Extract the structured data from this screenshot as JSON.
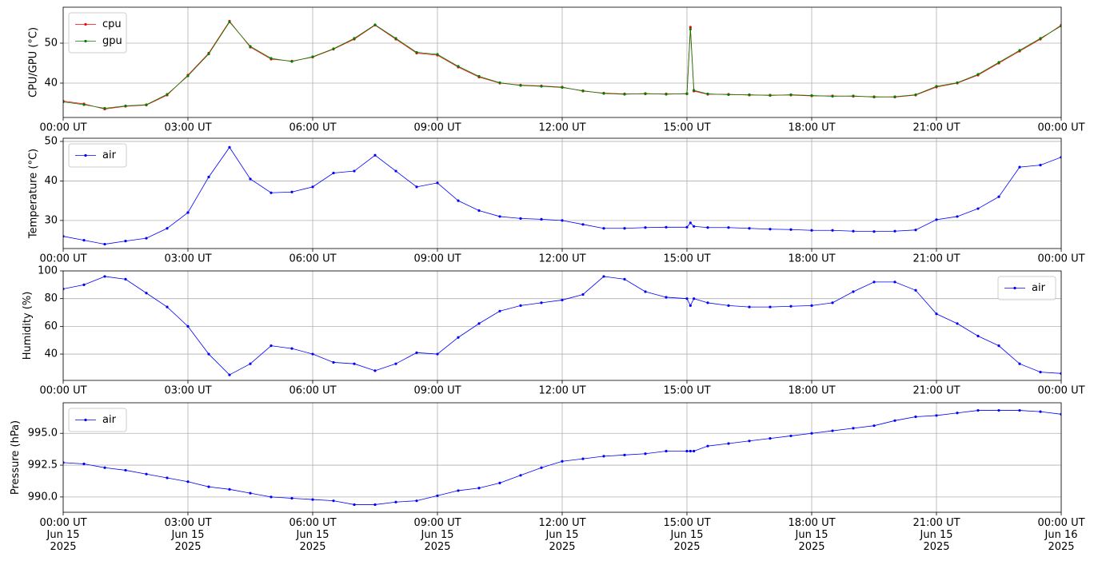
{
  "chart_data": [
    {
      "type": "line",
      "ylabel": "CPU/GPU (°C)",
      "grid": true,
      "legend": "upper left",
      "x": [
        "2025-06-15 00:00",
        "2025-06-15 00:30",
        "2025-06-15 01:00",
        "2025-06-15 01:30",
        "2025-06-15 02:00",
        "2025-06-15 02:30",
        "2025-06-15 03:00",
        "2025-06-15 03:30",
        "2025-06-15 04:00",
        "2025-06-15 04:30",
        "2025-06-15 05:00",
        "2025-06-15 05:30",
        "2025-06-15 06:00",
        "2025-06-15 06:30",
        "2025-06-15 07:00",
        "2025-06-15 07:30",
        "2025-06-15 08:00",
        "2025-06-15 08:30",
        "2025-06-15 09:00",
        "2025-06-15 09:30",
        "2025-06-15 10:00",
        "2025-06-15 10:30",
        "2025-06-15 11:00",
        "2025-06-15 11:30",
        "2025-06-15 12:00",
        "2025-06-15 12:30",
        "2025-06-15 13:00",
        "2025-06-15 13:30",
        "2025-06-15 14:00",
        "2025-06-15 14:30",
        "2025-06-15 15:00",
        "2025-06-15 15:05",
        "2025-06-15 15:10",
        "2025-06-15 15:30",
        "2025-06-15 16:00",
        "2025-06-15 16:30",
        "2025-06-15 17:00",
        "2025-06-15 17:30",
        "2025-06-15 18:00",
        "2025-06-15 18:30",
        "2025-06-15 19:00",
        "2025-06-15 19:30",
        "2025-06-15 20:00",
        "2025-06-15 20:30",
        "2025-06-15 21:00",
        "2025-06-15 21:30",
        "2025-06-15 22:00",
        "2025-06-15 22:30",
        "2025-06-15 23:00",
        "2025-06-15 23:30",
        "2025-06-16 00:00"
      ],
      "series": [
        {
          "name": "cpu",
          "color": "red",
          "values": [
            35.5,
            34.8,
            33.5,
            34.2,
            34.5,
            37,
            42,
            47.5,
            55.5,
            49,
            46,
            45.5,
            46.5,
            48.5,
            51,
            54.5,
            51,
            47.5,
            47,
            44,
            41.5,
            40,
            39.5,
            39.3,
            39,
            38,
            37.5,
            37.3,
            37.3,
            37.3,
            37.3,
            54,
            38,
            37.2,
            37.2,
            37,
            37,
            37,
            36.8,
            36.8,
            36.7,
            36.6,
            36.5,
            37,
            39,
            40,
            42,
            45,
            48,
            51,
            54.5
          ]
        },
        {
          "name": "gpu",
          "color": "green",
          "values": [
            35.3,
            34.6,
            33.7,
            34.3,
            34.6,
            37.2,
            41.8,
            47.3,
            55.3,
            49.2,
            46.2,
            45.4,
            46.6,
            48.6,
            51.2,
            54.6,
            51.2,
            47.7,
            47.2,
            44.2,
            41.7,
            40.1,
            39.4,
            39.2,
            38.9,
            38.1,
            37.4,
            37.2,
            37.4,
            37.2,
            37.4,
            53.5,
            38.2,
            37.3,
            37.1,
            37.1,
            36.9,
            37.1,
            36.9,
            36.7,
            36.8,
            36.5,
            36.6,
            37.1,
            39.2,
            40.1,
            42.2,
            45.2,
            48.2,
            51.2,
            54.3
          ]
        }
      ],
      "xlim": [
        "2025-06-15 00:00",
        "2025-06-16 00:00"
      ],
      "xticks": [
        {
          "value": "2025-06-15 00:00",
          "label": "00:00 UT"
        },
        {
          "value": "2025-06-15 03:00",
          "label": "03:00 UT"
        },
        {
          "value": "2025-06-15 06:00",
          "label": "06:00 UT"
        },
        {
          "value": "2025-06-15 09:00",
          "label": "09:00 UT"
        },
        {
          "value": "2025-06-15 12:00",
          "label": "12:00 UT"
        },
        {
          "value": "2025-06-15 15:00",
          "label": "15:00 UT"
        },
        {
          "value": "2025-06-15 18:00",
          "label": "18:00 UT"
        },
        {
          "value": "2025-06-15 21:00",
          "label": "21:00 UT"
        },
        {
          "value": "2025-06-16 00:00",
          "label": "00:00 UT"
        }
      ],
      "ylim": [
        31.4,
        59
      ],
      "yticks": [
        40,
        50
      ]
    },
    {
      "type": "line",
      "ylabel": "Temperature (°C)",
      "grid": true,
      "legend": "upper left",
      "x": [
        "2025-06-15 00:00",
        "2025-06-15 00:30",
        "2025-06-15 01:00",
        "2025-06-15 01:30",
        "2025-06-15 02:00",
        "2025-06-15 02:30",
        "2025-06-15 03:00",
        "2025-06-15 03:30",
        "2025-06-15 04:00",
        "2025-06-15 04:30",
        "2025-06-15 05:00",
        "2025-06-15 05:30",
        "2025-06-15 06:00",
        "2025-06-15 06:30",
        "2025-06-15 07:00",
        "2025-06-15 07:30",
        "2025-06-15 08:00",
        "2025-06-15 08:30",
        "2025-06-15 09:00",
        "2025-06-15 09:30",
        "2025-06-15 10:00",
        "2025-06-15 10:30",
        "2025-06-15 11:00",
        "2025-06-15 11:30",
        "2025-06-15 12:00",
        "2025-06-15 12:30",
        "2025-06-15 13:00",
        "2025-06-15 13:30",
        "2025-06-15 14:00",
        "2025-06-15 14:30",
        "2025-06-15 15:00",
        "2025-06-15 15:05",
        "2025-06-15 15:10",
        "2025-06-15 15:30",
        "2025-06-15 16:00",
        "2025-06-15 16:30",
        "2025-06-15 17:00",
        "2025-06-15 17:30",
        "2025-06-15 18:00",
        "2025-06-15 18:30",
        "2025-06-15 19:00",
        "2025-06-15 19:30",
        "2025-06-15 20:00",
        "2025-06-15 20:30",
        "2025-06-15 21:00",
        "2025-06-15 21:30",
        "2025-06-15 22:00",
        "2025-06-15 22:30",
        "2025-06-15 23:00",
        "2025-06-15 23:30",
        "2025-06-16 00:00"
      ],
      "series": [
        {
          "name": "air",
          "color": "blue",
          "values": [
            26,
            25,
            24,
            24.8,
            25.5,
            28,
            32,
            41,
            48.5,
            40.5,
            37,
            37.2,
            38.5,
            42,
            42.5,
            46.5,
            42.5,
            38.5,
            39.5,
            35,
            32.5,
            31,
            30.5,
            30.3,
            30,
            29,
            28,
            28,
            28.2,
            28.3,
            28.3,
            29.4,
            28.5,
            28.2,
            28.2,
            28,
            27.8,
            27.7,
            27.5,
            27.5,
            27.3,
            27.2,
            27.3,
            27.6,
            30.2,
            31,
            33,
            36,
            43.5,
            44,
            46
          ]
        }
      ],
      "xlim": [
        "2025-06-15 00:00",
        "2025-06-16 00:00"
      ],
      "xticks": [
        {
          "value": "2025-06-15 00:00",
          "label": "00:00 UT"
        },
        {
          "value": "2025-06-15 03:00",
          "label": "03:00 UT"
        },
        {
          "value": "2025-06-15 06:00",
          "label": "06:00 UT"
        },
        {
          "value": "2025-06-15 09:00",
          "label": "09:00 UT"
        },
        {
          "value": "2025-06-15 12:00",
          "label": "12:00 UT"
        },
        {
          "value": "2025-06-15 15:00",
          "label": "15:00 UT"
        },
        {
          "value": "2025-06-15 18:00",
          "label": "18:00 UT"
        },
        {
          "value": "2025-06-15 21:00",
          "label": "21:00 UT"
        },
        {
          "value": "2025-06-16 00:00",
          "label": "00:00 UT"
        }
      ],
      "ylim": [
        22.9,
        50.8
      ],
      "yticks": [
        30,
        40,
        50
      ]
    },
    {
      "type": "line",
      "ylabel": "Humidity (%)",
      "grid": true,
      "legend": "upper right",
      "x": [
        "2025-06-15 00:00",
        "2025-06-15 00:30",
        "2025-06-15 01:00",
        "2025-06-15 01:30",
        "2025-06-15 02:00",
        "2025-06-15 02:30",
        "2025-06-15 03:00",
        "2025-06-15 03:30",
        "2025-06-15 04:00",
        "2025-06-15 04:30",
        "2025-06-15 05:00",
        "2025-06-15 05:30",
        "2025-06-15 06:00",
        "2025-06-15 06:30",
        "2025-06-15 07:00",
        "2025-06-15 07:30",
        "2025-06-15 08:00",
        "2025-06-15 08:30",
        "2025-06-15 09:00",
        "2025-06-15 09:30",
        "2025-06-15 10:00",
        "2025-06-15 10:30",
        "2025-06-15 11:00",
        "2025-06-15 11:30",
        "2025-06-15 12:00",
        "2025-06-15 12:30",
        "2025-06-15 13:00",
        "2025-06-15 13:30",
        "2025-06-15 14:00",
        "2025-06-15 14:30",
        "2025-06-15 15:00",
        "2025-06-15 15:05",
        "2025-06-15 15:10",
        "2025-06-15 15:30",
        "2025-06-15 16:00",
        "2025-06-15 16:30",
        "2025-06-15 17:00",
        "2025-06-15 17:30",
        "2025-06-15 18:00",
        "2025-06-15 18:30",
        "2025-06-15 19:00",
        "2025-06-15 19:30",
        "2025-06-15 20:00",
        "2025-06-15 20:30",
        "2025-06-15 21:00",
        "2025-06-15 21:30",
        "2025-06-15 22:00",
        "2025-06-15 22:30",
        "2025-06-15 23:00",
        "2025-06-15 23:30",
        "2025-06-16 00:00"
      ],
      "series": [
        {
          "name": "air",
          "color": "blue",
          "values": [
            87,
            90,
            96,
            94,
            84,
            74,
            60,
            40,
            25,
            33,
            46,
            44,
            40,
            34,
            33,
            28,
            33,
            41,
            40,
            52,
            62,
            71,
            75,
            77,
            79,
            83,
            96,
            94,
            85,
            81,
            80,
            75,
            80,
            77,
            75,
            74,
            74,
            74.5,
            75,
            77,
            85,
            92,
            92,
            86,
            69,
            62,
            53,
            46,
            33,
            27,
            26
          ]
        }
      ],
      "xlim": [
        "2025-06-15 00:00",
        "2025-06-16 00:00"
      ],
      "xticks": [
        {
          "value": "2025-06-15 00:00",
          "label": "00:00 UT"
        },
        {
          "value": "2025-06-15 03:00",
          "label": "03:00 UT"
        },
        {
          "value": "2025-06-15 06:00",
          "label": "06:00 UT"
        },
        {
          "value": "2025-06-15 09:00",
          "label": "09:00 UT"
        },
        {
          "value": "2025-06-15 12:00",
          "label": "12:00 UT"
        },
        {
          "value": "2025-06-15 15:00",
          "label": "15:00 UT"
        },
        {
          "value": "2025-06-15 18:00",
          "label": "18:00 UT"
        },
        {
          "value": "2025-06-15 21:00",
          "label": "21:00 UT"
        },
        {
          "value": "2025-06-16 00:00",
          "label": "00:00 UT"
        }
      ],
      "ylim": [
        21,
        100
      ],
      "yticks": [
        40,
        60,
        80,
        100
      ]
    },
    {
      "type": "line",
      "ylabel": "Pressure (hPa)",
      "grid": true,
      "legend": "upper left",
      "x": [
        "2025-06-15 00:00",
        "2025-06-15 00:30",
        "2025-06-15 01:00",
        "2025-06-15 01:30",
        "2025-06-15 02:00",
        "2025-06-15 02:30",
        "2025-06-15 03:00",
        "2025-06-15 03:30",
        "2025-06-15 04:00",
        "2025-06-15 04:30",
        "2025-06-15 05:00",
        "2025-06-15 05:30",
        "2025-06-15 06:00",
        "2025-06-15 06:30",
        "2025-06-15 07:00",
        "2025-06-15 07:30",
        "2025-06-15 08:00",
        "2025-06-15 08:30",
        "2025-06-15 09:00",
        "2025-06-15 09:30",
        "2025-06-15 10:00",
        "2025-06-15 10:30",
        "2025-06-15 11:00",
        "2025-06-15 11:30",
        "2025-06-15 12:00",
        "2025-06-15 12:30",
        "2025-06-15 13:00",
        "2025-06-15 13:30",
        "2025-06-15 14:00",
        "2025-06-15 14:30",
        "2025-06-15 15:00",
        "2025-06-15 15:05",
        "2025-06-15 15:10",
        "2025-06-15 15:30",
        "2025-06-15 16:00",
        "2025-06-15 16:30",
        "2025-06-15 17:00",
        "2025-06-15 17:30",
        "2025-06-15 18:00",
        "2025-06-15 18:30",
        "2025-06-15 19:00",
        "2025-06-15 19:30",
        "2025-06-15 20:00",
        "2025-06-15 20:30",
        "2025-06-15 21:00",
        "2025-06-15 21:30",
        "2025-06-15 22:00",
        "2025-06-15 22:30",
        "2025-06-15 23:00",
        "2025-06-15 23:30",
        "2025-06-16 00:00"
      ],
      "series": [
        {
          "name": "air",
          "color": "blue",
          "values": [
            992.7,
            992.6,
            992.3,
            992.1,
            991.8,
            991.5,
            991.2,
            990.8,
            990.6,
            990.3,
            990.0,
            989.9,
            989.8,
            989.7,
            989.4,
            989.4,
            989.6,
            989.7,
            990.1,
            990.5,
            990.7,
            991.1,
            991.7,
            992.3,
            992.8,
            993.0,
            993.2,
            993.3,
            993.4,
            993.6,
            993.6,
            993.6,
            993.6,
            994.0,
            994.2,
            994.4,
            994.6,
            994.8,
            995.0,
            995.2,
            995.4,
            995.6,
            996.0,
            996.3,
            996.4,
            996.6,
            996.8,
            996.8,
            996.8,
            996.7,
            996.5
          ]
        }
      ],
      "xlim": [
        "2025-06-15 00:00",
        "2025-06-16 00:00"
      ],
      "xticks": [
        {
          "value": "2025-06-15 00:00",
          "label": "00:00 UT\nJun 15\n2025"
        },
        {
          "value": "2025-06-15 03:00",
          "label": "03:00 UT\nJun 15\n2025"
        },
        {
          "value": "2025-06-15 06:00",
          "label": "06:00 UT\nJun 15\n2025"
        },
        {
          "value": "2025-06-15 09:00",
          "label": "09:00 UT\nJun 15\n2025"
        },
        {
          "value": "2025-06-15 12:00",
          "label": "12:00 UT\nJun 15\n2025"
        },
        {
          "value": "2025-06-15 15:00",
          "label": "15:00 UT\nJun 15\n2025"
        },
        {
          "value": "2025-06-15 18:00",
          "label": "18:00 UT\nJun 15\n2025"
        },
        {
          "value": "2025-06-15 21:00",
          "label": "21:00 UT\nJun 15\n2025"
        },
        {
          "value": "2025-06-16 00:00",
          "label": "00:00 UT\nJun 16\n2025"
        }
      ],
      "ylim": [
        988.8,
        997.4
      ],
      "yticks": [
        {
          "value": 990,
          "label": "990.0"
        },
        {
          "value": 992.5,
          "label": "992.5"
        },
        {
          "value": 995,
          "label": "995.0"
        }
      ]
    }
  ]
}
